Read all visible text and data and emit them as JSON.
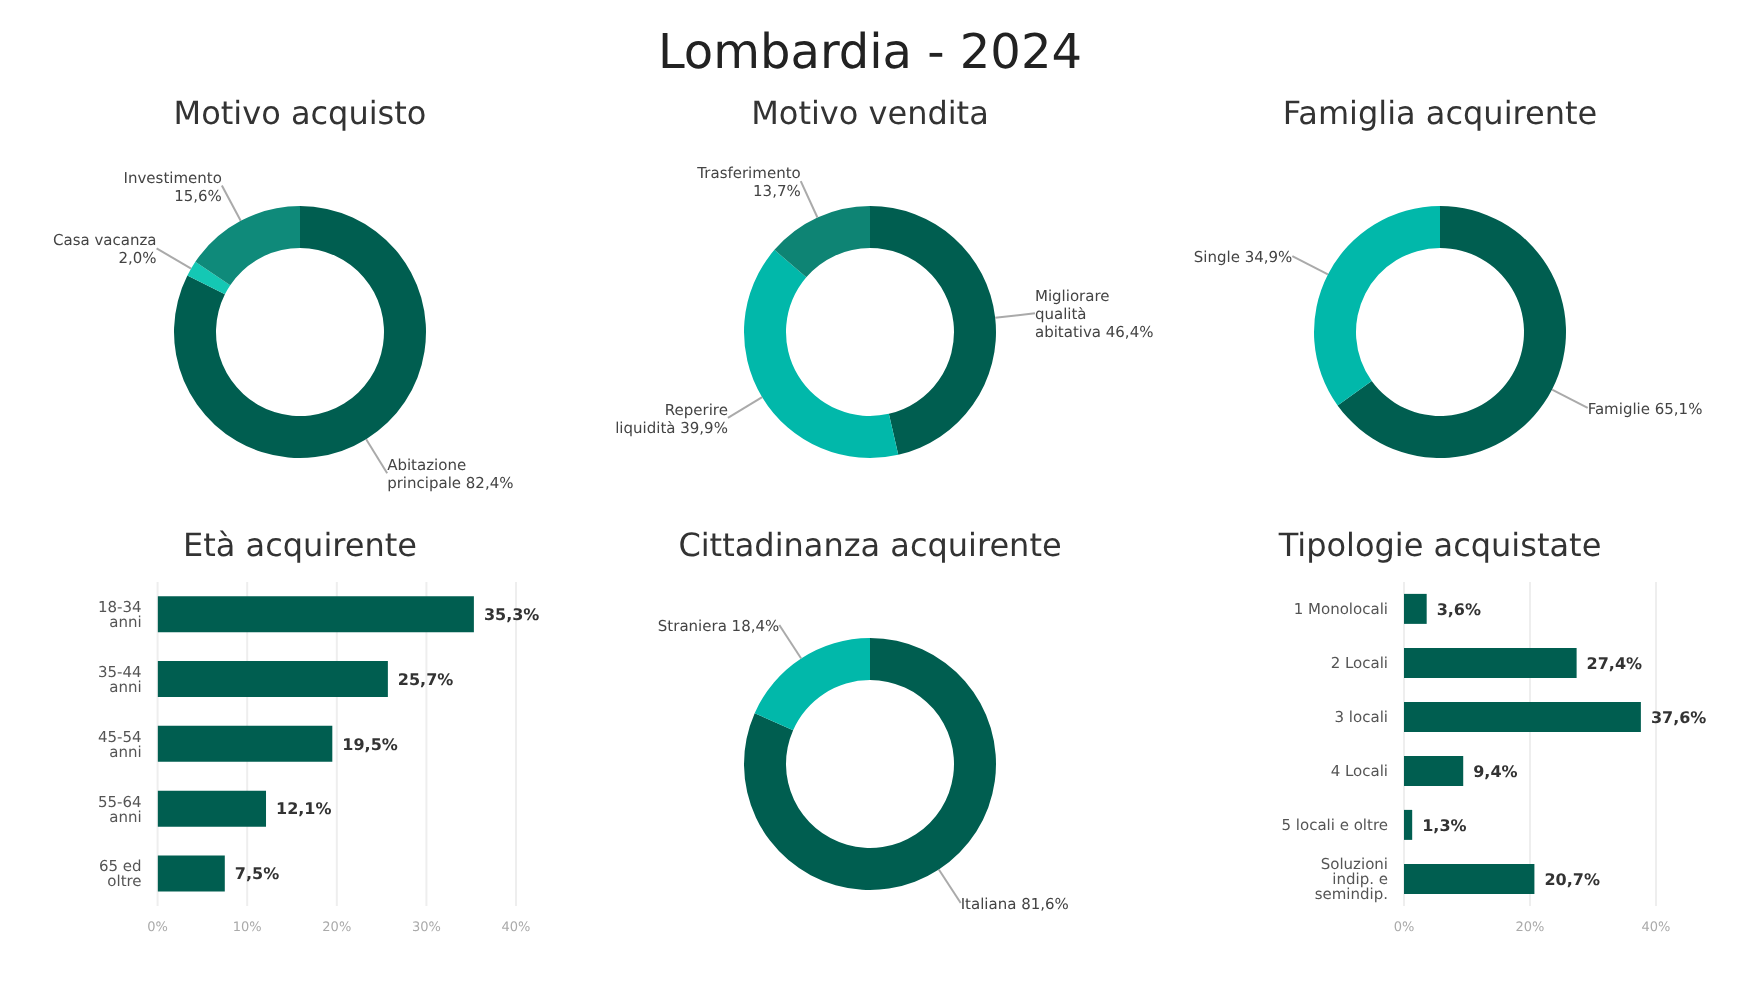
{
  "chart_data": [
    {
      "type": "donut",
      "title": "Motivo acquisto",
      "annotations": [
        "Lombardia - 2024"
      ],
      "categories": [
        "Abitazione principale",
        "Casa vacanza",
        "Investimento"
      ],
      "values": [
        82.4,
        2.0,
        15.6
      ],
      "value_labels": [
        "82,4%",
        "2,0%",
        "15,6%"
      ],
      "colors": [
        "#005e50",
        "#14c8b4",
        "#0f8a7a"
      ],
      "legend": false
    },
    {
      "type": "donut",
      "title": "Motivo vendita",
      "categories": [
        "Migliorare qualità abitativa",
        "Reperire liquidità",
        "Trasferimento"
      ],
      "values": [
        46.4,
        39.9,
        13.7
      ],
      "value_labels": [
        "46,4%",
        "39,9%",
        "13,7%"
      ],
      "colors": [
        "#005e50",
        "#01b8aa",
        "#0e8474"
      ],
      "legend": false
    },
    {
      "type": "donut",
      "title": "Famiglia acquirente",
      "categories": [
        "Famiglie",
        "Single"
      ],
      "values": [
        65.1,
        34.9
      ],
      "value_labels": [
        "65,1%",
        "34,9%"
      ],
      "colors": [
        "#005e50",
        "#01b8aa"
      ],
      "legend": false
    },
    {
      "type": "bar",
      "orientation": "horizontal",
      "title": "Età acquirente",
      "categories": [
        "18-34 anni",
        "35-44 anni",
        "45-54 anni",
        "55-64 anni",
        "65 ed oltre"
      ],
      "values": [
        35.3,
        25.7,
        19.5,
        12.1,
        7.5
      ],
      "value_labels": [
        "35,3%",
        "25,7%",
        "19,5%",
        "12,1%",
        "7,5%"
      ],
      "color": "#005e50",
      "xlim": [
        0,
        40
      ],
      "xticks": [
        {
          "value": 0,
          "label": "0%"
        },
        {
          "value": 10,
          "label": "10%"
        },
        {
          "value": 20,
          "label": "20%"
        },
        {
          "value": 30,
          "label": "30%"
        },
        {
          "value": 40,
          "label": "40%"
        }
      ],
      "grid": "x",
      "legend": false
    },
    {
      "type": "donut",
      "title": "Cittadinanza acquirente",
      "categories": [
        "Italiana",
        "Straniera"
      ],
      "values": [
        81.6,
        18.4
      ],
      "value_labels": [
        "81,6%",
        "18,4%"
      ],
      "colors": [
        "#005e50",
        "#01b8aa"
      ],
      "legend": false
    },
    {
      "type": "bar",
      "orientation": "horizontal",
      "title": "Tipologie acquistate",
      "categories": [
        "1 Monolocali",
        "2 Locali",
        "3 locali",
        "4 Locali",
        "5 locali e oltre",
        "Soluzioni indip. e semindip."
      ],
      "values": [
        3.6,
        27.4,
        37.6,
        9.4,
        1.3,
        20.7
      ],
      "value_labels": [
        "3,6%",
        "27,4%",
        "37,6%",
        "9,4%",
        "1,3%",
        "20,7%"
      ],
      "color": "#005e50",
      "xlim": [
        0,
        40
      ],
      "xticks": [
        {
          "value": 0,
          "label": "0%"
        },
        {
          "value": 20,
          "label": "20%"
        },
        {
          "value": 40,
          "label": "40%"
        }
      ],
      "grid": "x",
      "legend": false
    }
  ]
}
